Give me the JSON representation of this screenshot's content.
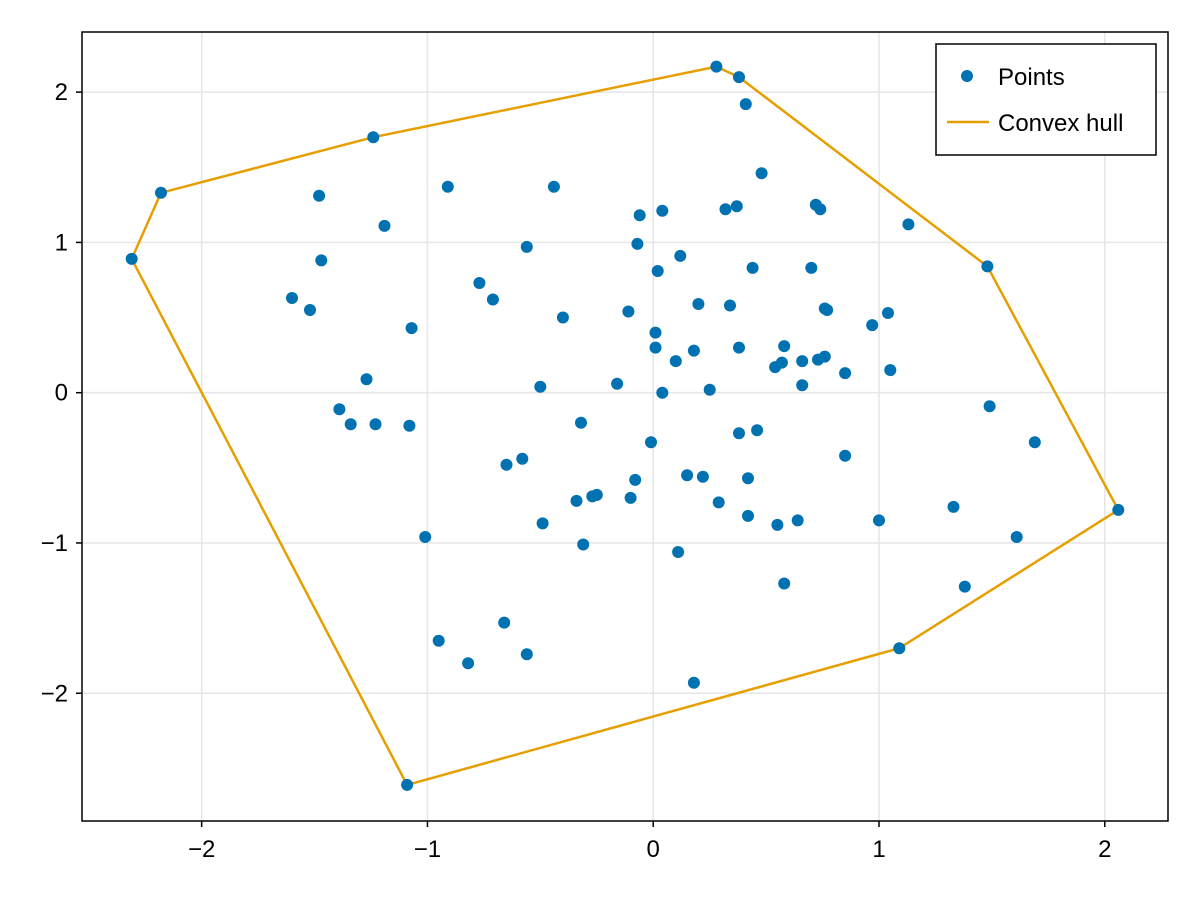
{
  "chart_data": {
    "type": "scatter",
    "title": "",
    "xlabel": "",
    "ylabel": "",
    "xlim": [
      -2.53,
      2.28
    ],
    "ylim": [
      -2.85,
      2.4
    ],
    "grid": true,
    "legend_position": "top-right",
    "x_ticks": [
      -2,
      -1,
      0,
      1,
      2
    ],
    "x_tick_labels": [
      "−2",
      "−1",
      "0",
      "1",
      "2"
    ],
    "y_ticks": [
      -2,
      -1,
      0,
      1,
      2
    ],
    "y_tick_labels": [
      "−2",
      "−1",
      "0",
      "1",
      "2"
    ],
    "colors": {
      "points": "#0072b2",
      "hull": "#e69f00",
      "grid": "#e6e6e6",
      "frame": "#000000"
    },
    "series": [
      {
        "name": "Points",
        "type": "scatter",
        "points": [
          [
            0.28,
            2.17
          ],
          [
            0.38,
            2.1
          ],
          [
            0.41,
            1.92
          ],
          [
            -1.24,
            1.7
          ],
          [
            -2.18,
            1.33
          ],
          [
            -1.48,
            1.31
          ],
          [
            -0.91,
            1.37
          ],
          [
            -0.44,
            1.37
          ],
          [
            0.48,
            1.46
          ],
          [
            0.72,
            1.25
          ],
          [
            0.74,
            1.22
          ],
          [
            0.32,
            1.22
          ],
          [
            0.37,
            1.24
          ],
          [
            0.04,
            1.21
          ],
          [
            -0.06,
            1.18
          ],
          [
            1.13,
            1.12
          ],
          [
            -1.19,
            1.11
          ],
          [
            -0.56,
            0.97
          ],
          [
            -0.07,
            0.99
          ],
          [
            0.12,
            0.91
          ],
          [
            -1.47,
            0.88
          ],
          [
            -2.31,
            0.89
          ],
          [
            1.48,
            0.84
          ],
          [
            0.44,
            0.83
          ],
          [
            0.7,
            0.83
          ],
          [
            0.02,
            0.81
          ],
          [
            -0.77,
            0.73
          ],
          [
            -1.6,
            0.63
          ],
          [
            -0.71,
            0.62
          ],
          [
            0.2,
            0.59
          ],
          [
            0.34,
            0.58
          ],
          [
            0.76,
            0.56
          ],
          [
            0.77,
            0.55
          ],
          [
            -1.52,
            0.55
          ],
          [
            -0.11,
            0.54
          ],
          [
            1.04,
            0.53
          ],
          [
            -0.4,
            0.5
          ],
          [
            0.97,
            0.45
          ],
          [
            -1.07,
            0.43
          ],
          [
            0.01,
            0.4
          ],
          [
            0.58,
            0.31
          ],
          [
            0.01,
            0.3
          ],
          [
            0.38,
            0.3
          ],
          [
            0.18,
            0.28
          ],
          [
            0.76,
            0.24
          ],
          [
            0.73,
            0.22
          ],
          [
            0.66,
            0.21
          ],
          [
            0.1,
            0.21
          ],
          [
            0.57,
            0.2
          ],
          [
            0.54,
            0.17
          ],
          [
            1.05,
            0.15
          ],
          [
            0.85,
            0.13
          ],
          [
            -1.27,
            0.09
          ],
          [
            -0.16,
            0.06
          ],
          [
            0.66,
            0.05
          ],
          [
            -0.5,
            0.04
          ],
          [
            0.25,
            0.02
          ],
          [
            0.04,
            0.0
          ],
          [
            1.49,
            -0.09
          ],
          [
            -1.39,
            -0.11
          ],
          [
            -1.34,
            -0.21
          ],
          [
            -1.23,
            -0.21
          ],
          [
            -0.32,
            -0.2
          ],
          [
            -1.08,
            -0.22
          ],
          [
            0.46,
            -0.25
          ],
          [
            0.38,
            -0.27
          ],
          [
            1.69,
            -0.33
          ],
          [
            -0.01,
            -0.33
          ],
          [
            0.85,
            -0.42
          ],
          [
            -0.58,
            -0.44
          ],
          [
            -0.65,
            -0.48
          ],
          [
            0.15,
            -0.55
          ],
          [
            0.22,
            -0.56
          ],
          [
            0.42,
            -0.57
          ],
          [
            -0.08,
            -0.58
          ],
          [
            -0.25,
            -0.68
          ],
          [
            -0.27,
            -0.69
          ],
          [
            -0.1,
            -0.7
          ],
          [
            -0.34,
            -0.72
          ],
          [
            0.29,
            -0.73
          ],
          [
            1.33,
            -0.76
          ],
          [
            2.06,
            -0.78
          ],
          [
            0.42,
            -0.82
          ],
          [
            1.0,
            -0.85
          ],
          [
            0.64,
            -0.85
          ],
          [
            -0.49,
            -0.87
          ],
          [
            0.55,
            -0.88
          ],
          [
            -1.01,
            -0.96
          ],
          [
            1.61,
            -0.96
          ],
          [
            -0.31,
            -1.01
          ],
          [
            0.11,
            -1.06
          ],
          [
            0.58,
            -1.27
          ],
          [
            1.38,
            -1.29
          ],
          [
            -0.66,
            -1.53
          ],
          [
            -0.95,
            -1.65
          ],
          [
            1.09,
            -1.7
          ],
          [
            -0.56,
            -1.74
          ],
          [
            -0.82,
            -1.8
          ],
          [
            0.18,
            -1.93
          ],
          [
            -1.09,
            -2.61
          ]
        ]
      },
      {
        "name": "Convex hull",
        "type": "line",
        "points": [
          [
            0.28,
            2.17
          ],
          [
            0.38,
            2.1
          ],
          [
            1.48,
            0.84
          ],
          [
            2.06,
            -0.78
          ],
          [
            1.09,
            -1.7
          ],
          [
            -1.09,
            -2.61
          ],
          [
            -2.31,
            0.89
          ],
          [
            -2.18,
            1.33
          ],
          [
            -1.24,
            1.7
          ],
          [
            0.28,
            2.17
          ]
        ]
      }
    ]
  }
}
